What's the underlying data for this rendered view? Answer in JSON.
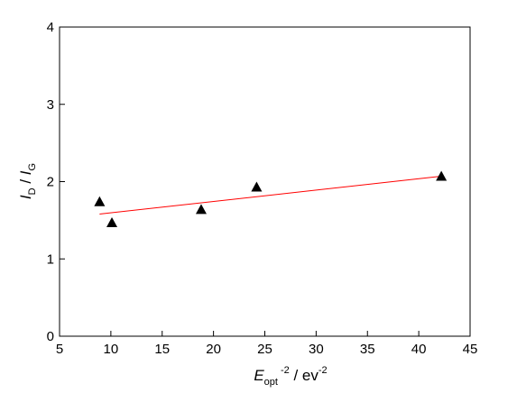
{
  "chart_data": {
    "type": "scatter",
    "xlim": [
      5,
      45
    ],
    "ylim": [
      0,
      4
    ],
    "xticks": [
      5,
      10,
      15,
      20,
      25,
      30,
      35,
      40,
      45
    ],
    "yticks": [
      0,
      1,
      2,
      3,
      4
    ],
    "grid": false,
    "xlabel": {
      "symbol": "E",
      "sub": "opt",
      "sup": "-2",
      "rest": " / ev",
      "rest_sup": "-2"
    },
    "ylabel": {
      "part1": "I",
      "sub1": "D",
      "sep": " / ",
      "part2": "I",
      "sub2": "G"
    },
    "series": [
      {
        "marker": "triangle",
        "color": "#000000",
        "x": [
          8.9,
          10.1,
          18.8,
          24.2,
          42.2
        ],
        "y": [
          1.74,
          1.47,
          1.64,
          1.93,
          2.07
        ]
      }
    ],
    "fit_line": {
      "color": "#ff0000",
      "x": [
        8.9,
        42.2
      ],
      "y": [
        1.58,
        2.07
      ]
    }
  }
}
